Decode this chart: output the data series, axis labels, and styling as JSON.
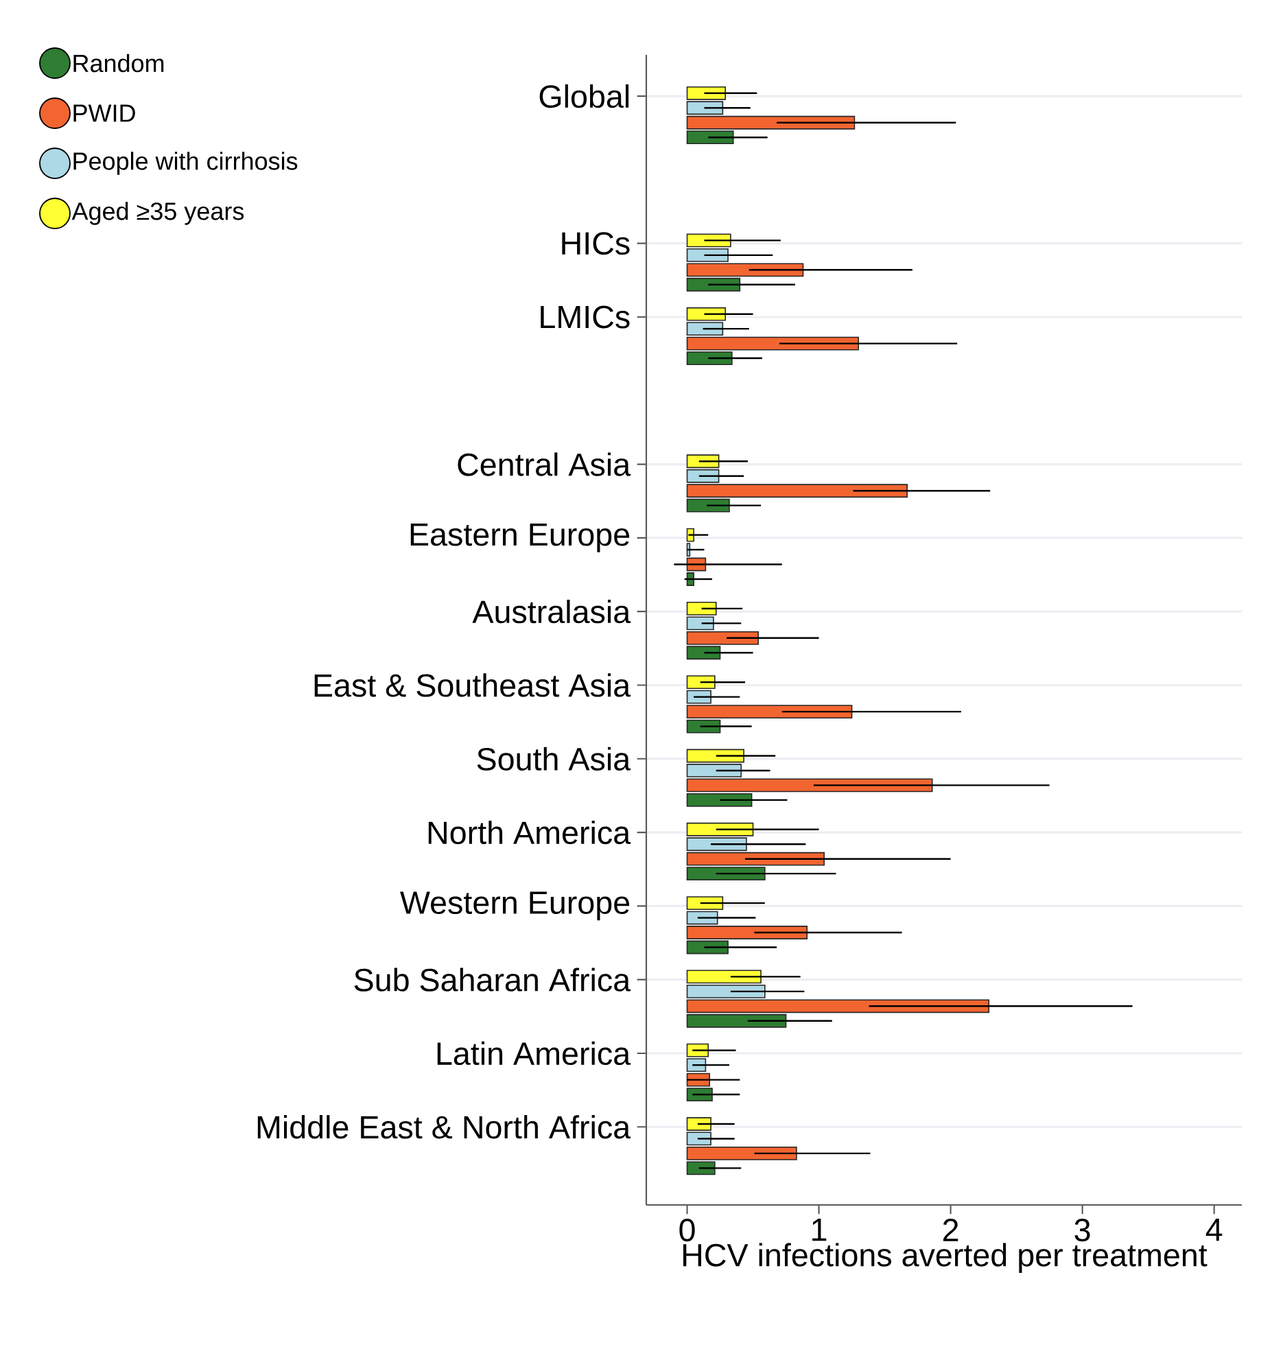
{
  "chart_data": {
    "type": "bar",
    "orientation": "horizontal",
    "categories": [
      "Global",
      null,
      "HICs",
      "LMICs",
      null,
      "Central Asia",
      "Eastern Europe",
      "Australasia",
      "East & Southeast Asia",
      "South Asia",
      "North America",
      "Western Europe",
      "Sub Saharan Africa",
      "Latin America",
      "Middle East & North Africa"
    ],
    "series": [
      {
        "name": "Random",
        "color": "#2e7d32",
        "values": [
          0.35,
          null,
          0.4,
          0.34,
          null,
          0.32,
          0.05,
          0.25,
          0.25,
          0.49,
          0.59,
          0.31,
          0.75,
          0.19,
          0.21
        ],
        "errors": [
          [
            0.16,
            0.61
          ],
          null,
          [
            0.16,
            0.82
          ],
          [
            0.16,
            0.57
          ],
          null,
          [
            0.15,
            0.56
          ],
          [
            -0.02,
            0.19
          ],
          [
            0.13,
            0.5
          ],
          [
            0.1,
            0.49
          ],
          [
            0.25,
            0.76
          ],
          [
            0.22,
            1.13
          ],
          [
            0.13,
            0.68
          ],
          [
            0.46,
            1.1
          ],
          [
            0.04,
            0.4
          ],
          [
            0.09,
            0.41
          ]
        ]
      },
      {
        "name": "PWID",
        "color": "#f26530",
        "values": [
          1.27,
          null,
          0.88,
          1.3,
          null,
          1.67,
          0.14,
          0.54,
          1.25,
          1.86,
          1.04,
          0.91,
          2.29,
          0.17,
          0.83
        ],
        "errors": [
          [
            0.68,
            2.04
          ],
          null,
          [
            0.47,
            1.71
          ],
          [
            0.7,
            2.05
          ],
          null,
          [
            1.26,
            2.3
          ],
          [
            -0.1,
            0.72
          ],
          [
            0.3,
            1.0
          ],
          [
            0.72,
            2.08
          ],
          [
            0.96,
            2.75
          ],
          [
            0.44,
            2.0
          ],
          [
            0.51,
            1.63
          ],
          [
            1.38,
            3.38
          ],
          [
            0.0,
            0.4
          ],
          [
            0.51,
            1.39
          ]
        ]
      },
      {
        "name": "People with cirrhosis",
        "color": "#add8e6",
        "values": [
          0.27,
          null,
          0.31,
          0.27,
          null,
          0.24,
          0.02,
          0.2,
          0.18,
          0.41,
          0.45,
          0.23,
          0.59,
          0.14,
          0.18
        ],
        "errors": [
          [
            0.13,
            0.48
          ],
          null,
          [
            0.13,
            0.65
          ],
          [
            0.12,
            0.47
          ],
          null,
          [
            0.09,
            0.43
          ],
          [
            0.0,
            0.13
          ],
          [
            0.11,
            0.41
          ],
          [
            0.05,
            0.4
          ],
          [
            0.22,
            0.63
          ],
          [
            0.18,
            0.9
          ],
          [
            0.08,
            0.52
          ],
          [
            0.33,
            0.89
          ],
          [
            0.04,
            0.32
          ],
          [
            0.08,
            0.36
          ]
        ]
      },
      {
        "name": "Aged ≥35 years",
        "color": "#ffff33",
        "values": [
          0.29,
          null,
          0.33,
          0.29,
          null,
          0.24,
          0.05,
          0.22,
          0.21,
          0.43,
          0.5,
          0.27,
          0.56,
          0.16,
          0.18
        ],
        "errors": [
          [
            0.13,
            0.53
          ],
          null,
          [
            0.13,
            0.71
          ],
          [
            0.13,
            0.5
          ],
          null,
          [
            0.09,
            0.46
          ],
          [
            0.01,
            0.16
          ],
          [
            0.11,
            0.42
          ],
          [
            0.1,
            0.44
          ],
          [
            0.22,
            0.67
          ],
          [
            0.22,
            1.0
          ],
          [
            0.1,
            0.59
          ],
          [
            0.33,
            0.86
          ],
          [
            0.04,
            0.37
          ],
          [
            0.08,
            0.36
          ]
        ]
      }
    ],
    "xlim": [
      -0.31,
      4.21
    ],
    "xticks": [
      0,
      1,
      2,
      3,
      4
    ],
    "xlabel": "HCV infections averted per treatment",
    "grid": "y",
    "legend": "top left"
  }
}
